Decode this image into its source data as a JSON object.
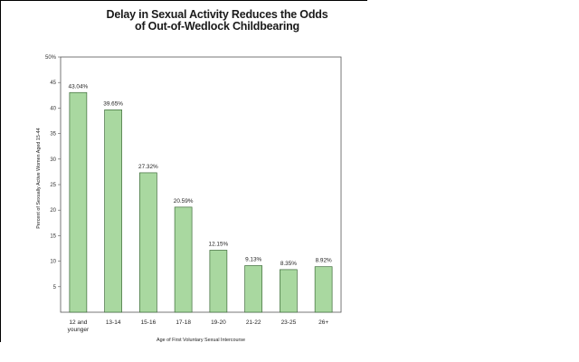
{
  "chart_data": {
    "type": "bar",
    "title_lines": [
      "Delay in Sexual Activity Reduces the Odds",
      "of Out-of-Wedlock Childbearing"
    ],
    "xlabel": "Age of First Voluntary Sexual Intercourse",
    "ylabel": "Percent of Sexually Active Women Aged 15-44",
    "categories": [
      [
        "12 and",
        "younger"
      ],
      [
        "13-14"
      ],
      [
        "15-16"
      ],
      [
        "17-18"
      ],
      [
        "19-20"
      ],
      [
        "21-22"
      ],
      [
        "23-25"
      ],
      [
        "26+"
      ]
    ],
    "values": [
      43.04,
      39.65,
      27.32,
      20.59,
      12.15,
      9.13,
      8.35,
      8.92
    ],
    "value_labels": [
      "43.04%",
      "39.65%",
      "27.32%",
      "20.59%",
      "12.15%",
      "9.13%",
      "8.35%",
      "8.92%"
    ],
    "ylim": [
      0,
      50
    ],
    "yticks": [
      5,
      10,
      15,
      20,
      25,
      30,
      35,
      40,
      45,
      50
    ],
    "ytick_labels": [
      "5",
      "10",
      "15",
      "20",
      "25",
      "30",
      "35",
      "40",
      "45",
      "50%"
    ],
    "grid": false,
    "bar_color": "#a9d8a0",
    "bar_edge_color": "#3d6b39"
  }
}
